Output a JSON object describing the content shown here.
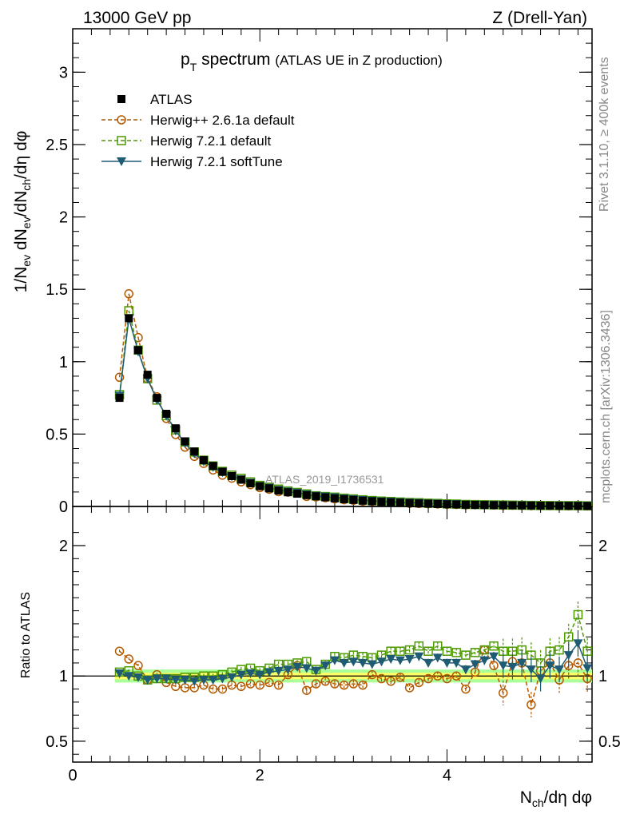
{
  "header": {
    "energy": "13000 GeV pp",
    "process": "Z (Drell-Yan)"
  },
  "side_text": {
    "rivet": "Rivet 3.1.10, ≥ 400k events",
    "mcplots": "mcplots.cern.ch [arXiv:1306.3436]"
  },
  "watermark": "ATLAS_2019_I1736531",
  "colors": {
    "atlas": "#000000",
    "herwigpp": "#b35900",
    "herwig_default": "#4c9900",
    "herwig_soft": "#1f5c73",
    "band_inner": "#ffff66",
    "band_outer": "#aaff99"
  },
  "chart_data": [
    {
      "type": "scatter",
      "panel": "main",
      "title_main": "p",
      "title_sub": "T",
      "title_rest": " spectrum",
      "title_note": "(ATLAS UE in Z production)",
      "ylabel": "1/N_ev dN_ev/dN_ch/dη dφ",
      "ylim": [
        0,
        3.3
      ],
      "yticks": [
        {
          "v": 0,
          "t": "0"
        },
        {
          "v": 0.5,
          "t": "0.5"
        },
        {
          "v": 1,
          "t": "1"
        },
        {
          "v": 1.5,
          "t": "1.5"
        },
        {
          "v": 2,
          "t": "2"
        },
        {
          "v": 2.5,
          "t": "2.5"
        },
        {
          "v": 3,
          "t": "3"
        }
      ],
      "xlim": [
        0,
        5.55
      ],
      "x": [
        0.5,
        0.6,
        0.7,
        0.8,
        0.9,
        1.0,
        1.1,
        1.2,
        1.3,
        1.4,
        1.5,
        1.6,
        1.7,
        1.8,
        1.9,
        2.0,
        2.1,
        2.2,
        2.3,
        2.4,
        2.5,
        2.6,
        2.7,
        2.8,
        2.9,
        3.0,
        3.1,
        3.2,
        3.3,
        3.4,
        3.5,
        3.6,
        3.7,
        3.8,
        3.9,
        4.0,
        4.1,
        4.2,
        4.3,
        4.4,
        4.5,
        4.6,
        4.7,
        4.8,
        4.9,
        5.0,
        5.1,
        5.2,
        5.3,
        5.4,
        5.5
      ],
      "legend": [
        {
          "name": "ATLAS",
          "marker": "square-filled"
        },
        {
          "name": "Herwig++ 2.6.1a default",
          "marker": "circle-open"
        },
        {
          "name": "Herwig 7.2.1 default",
          "marker": "square-open"
        },
        {
          "name": "Herwig 7.2.1 softTune",
          "marker": "triangle-down"
        }
      ],
      "series": [
        {
          "name": "ATLAS",
          "values": [
            0.75,
            1.3,
            1.08,
            0.91,
            0.75,
            0.64,
            0.54,
            0.45,
            0.38,
            0.32,
            0.28,
            0.24,
            0.21,
            0.185,
            0.16,
            0.14,
            0.125,
            0.11,
            0.098,
            0.088,
            0.078,
            0.07,
            0.063,
            0.056,
            0.05,
            0.045,
            0.04,
            0.036,
            0.032,
            0.029,
            0.026,
            0.023,
            0.021,
            0.019,
            0.017,
            0.015,
            0.014,
            0.012,
            0.011,
            0.01,
            0.009,
            0.0085,
            0.0078,
            0.007,
            0.0064,
            0.0058,
            0.0053,
            0.0048,
            0.0044,
            0.004,
            0.0037
          ]
        }
      ]
    },
    {
      "type": "scatter",
      "panel": "ratio",
      "ylabel": "Ratio to ATLAS",
      "ylim": [
        0.34,
        2.3
      ],
      "yticks": [
        {
          "v": 0.5,
          "t": "0.5"
        },
        {
          "v": 1,
          "t": "1"
        },
        {
          "v": 2,
          "t": "2"
        }
      ],
      "xlim": [
        0,
        5.55
      ],
      "xlabel": "N_ch/dη dφ",
      "xticks": [
        {
          "v": 0,
          "t": "0"
        },
        {
          "v": 2,
          "t": "2"
        },
        {
          "v": 4,
          "t": "4"
        }
      ],
      "x": [
        0.5,
        0.6,
        0.7,
        0.8,
        0.9,
        1.0,
        1.1,
        1.2,
        1.3,
        1.4,
        1.5,
        1.6,
        1.7,
        1.8,
        1.9,
        2.0,
        2.1,
        2.2,
        2.3,
        2.4,
        2.5,
        2.6,
        2.7,
        2.8,
        2.9,
        3.0,
        3.1,
        3.2,
        3.3,
        3.4,
        3.5,
        3.6,
        3.7,
        3.8,
        3.9,
        4.0,
        4.1,
        4.2,
        4.3,
        4.4,
        4.5,
        4.6,
        4.7,
        4.8,
        4.9,
        5.0,
        5.1,
        5.2,
        5.3,
        5.4,
        5.5
      ],
      "series": [
        {
          "name": "Herwig++ 2.6.1a default",
          "values": [
            1.19,
            1.13,
            1.08,
            0.97,
            1.01,
            0.95,
            0.92,
            0.91,
            0.91,
            0.93,
            0.9,
            0.9,
            0.93,
            0.92,
            0.94,
            0.93,
            0.95,
            0.93,
            1.01,
            1.08,
            0.89,
            0.94,
            0.96,
            0.94,
            0.93,
            0.94,
            0.93,
            1.01,
            0.98,
            0.96,
            0.99,
            0.91,
            0.95,
            0.98,
            1.0,
            0.98,
            1.0,
            0.9,
            1.03,
            1.2,
            1.08,
            0.87,
            1.11,
            1.1,
            0.78,
            1.04,
            1.1,
            0.97,
            1.08,
            1.1,
            0.98
          ]
        },
        {
          "name": "Herwig 7.2.1 default",
          "values": [
            1.03,
            1.04,
            1.0,
            0.97,
            0.98,
            0.98,
            0.98,
            0.99,
            0.99,
            1.0,
            1.0,
            1.01,
            1.03,
            1.05,
            1.06,
            1.04,
            1.06,
            1.09,
            1.09,
            1.1,
            1.11,
            1.05,
            1.09,
            1.15,
            1.14,
            1.16,
            1.15,
            1.14,
            1.16,
            1.19,
            1.19,
            1.2,
            1.23,
            1.19,
            1.23,
            1.19,
            1.18,
            1.16,
            1.18,
            1.2,
            1.23,
            1.19,
            1.19,
            1.2,
            1.16,
            1.1,
            1.19,
            1.2,
            1.3,
            1.47,
            1.19
          ]
        },
        {
          "name": "Herwig 7.2.1 softTune",
          "values": [
            1.02,
            1.0,
            0.99,
            0.97,
            0.98,
            0.98,
            0.97,
            0.97,
            0.96,
            0.97,
            0.97,
            0.98,
            0.99,
            1.01,
            1.02,
            1.01,
            1.03,
            1.04,
            1.05,
            1.07,
            1.06,
            1.04,
            1.08,
            1.12,
            1.1,
            1.11,
            1.1,
            1.09,
            1.11,
            1.13,
            1.12,
            1.13,
            1.15,
            1.1,
            1.14,
            1.1,
            1.1,
            1.05,
            1.09,
            1.12,
            1.15,
            1.08,
            1.07,
            1.1,
            1.05,
            0.98,
            1.08,
            1.05,
            1.16,
            1.25,
            1.06
          ]
        }
      ],
      "band": {
        "inner_halfwidth": 0.025,
        "outer_halfwidth": 0.05
      }
    }
  ]
}
